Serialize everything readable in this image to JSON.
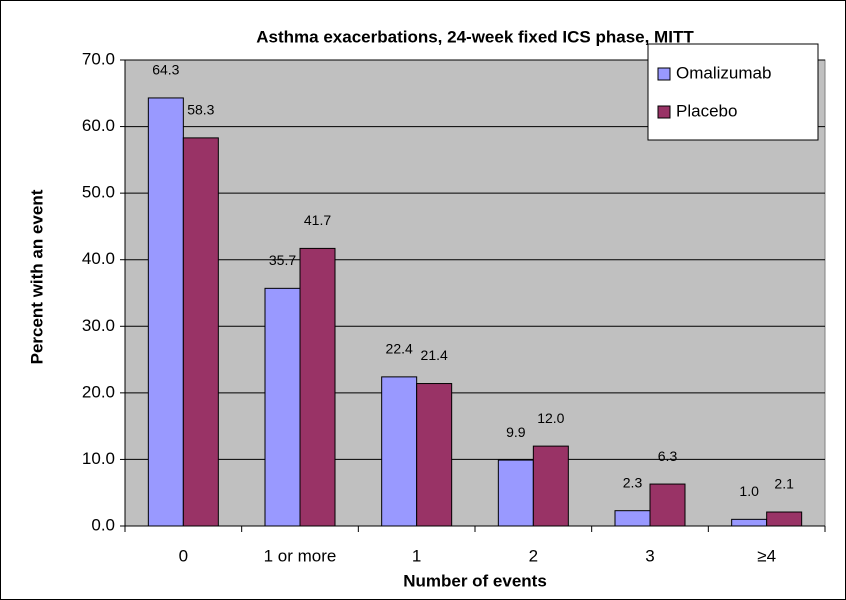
{
  "chart_data": {
    "type": "bar",
    "title": "Asthma exacerbations, 24-week fixed ICS phase, MITT",
    "xlabel": "Number of events",
    "ylabel": "Percent with an event",
    "categories": [
      "0",
      "1 or more",
      "1",
      "2",
      "3",
      "≥4"
    ],
    "series": [
      {
        "name": "Omalizumab",
        "color": "#9999ff",
        "values": [
          64.3,
          35.7,
          22.4,
          9.9,
          2.3,
          1.0
        ],
        "value_labels": [
          "64.3",
          "35.7",
          "22.4",
          "9.9",
          "2.3",
          "1.0"
        ]
      },
      {
        "name": "Placebo",
        "color": "#993366",
        "values": [
          58.3,
          41.7,
          21.4,
          12.0,
          6.3,
          2.1
        ],
        "value_labels": [
          "58.3",
          "41.7",
          "21.4",
          "12.0",
          "6.3",
          "2.1"
        ]
      }
    ],
    "ylim": [
      0,
      70
    ],
    "yticks": [
      {
        "value": 0,
        "label": "0.0"
      },
      {
        "value": 10,
        "label": "10.0"
      },
      {
        "value": 20,
        "label": "20.0"
      },
      {
        "value": 30,
        "label": "30.0"
      },
      {
        "value": 40,
        "label": "40.0"
      },
      {
        "value": 50,
        "label": "50.0"
      },
      {
        "value": 60,
        "label": "60.0"
      },
      {
        "value": 70,
        "label": "70.0"
      }
    ],
    "grid": true,
    "legend": "top-right"
  }
}
